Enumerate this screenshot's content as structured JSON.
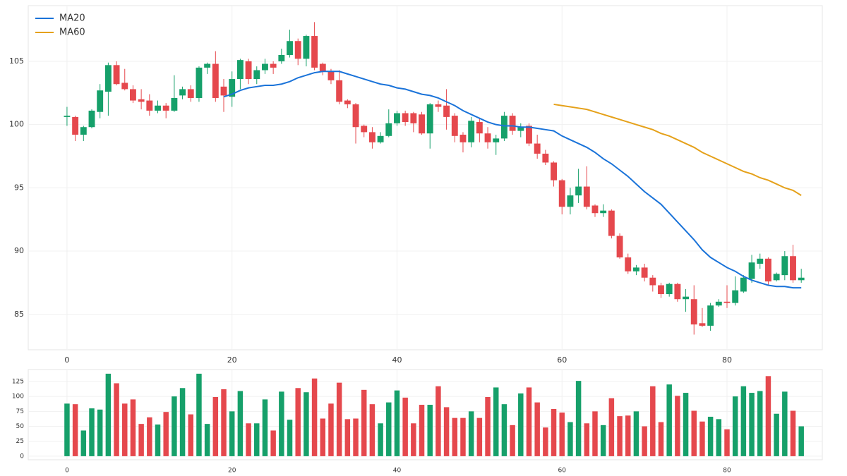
{
  "chart_data": [
    {
      "type": "candlestick",
      "x": [
        0,
        1,
        2,
        3,
        4,
        5,
        6,
        7,
        8,
        9,
        10,
        11,
        12,
        13,
        14,
        15,
        16,
        17,
        18,
        19,
        20,
        21,
        22,
        23,
        24,
        25,
        26,
        27,
        28,
        29,
        30,
        31,
        32,
        33,
        34,
        35,
        36,
        37,
        38,
        39,
        40,
        41,
        42,
        43,
        44,
        45,
        46,
        47,
        48,
        49,
        50,
        51,
        52,
        53,
        54,
        55,
        56,
        57,
        58,
        59,
        60,
        61,
        62,
        63,
        64,
        65,
        66,
        67,
        68,
        69,
        70,
        71,
        72,
        73,
        74,
        75,
        76,
        77,
        78,
        79,
        80,
        81,
        82,
        83,
        84,
        85,
        86,
        87,
        88,
        89
      ],
      "open": [
        100.6,
        100.6,
        99.2,
        99.8,
        101.0,
        102.6,
        104.7,
        103.3,
        102.8,
        102.0,
        101.9,
        101.1,
        101.5,
        101.1,
        102.3,
        102.8,
        102.1,
        104.5,
        104.8,
        103.0,
        102.2,
        103.6,
        105.0,
        103.6,
        104.3,
        104.8,
        105.0,
        105.5,
        106.6,
        105.2,
        107.0,
        104.8,
        104.2,
        103.5,
        101.9,
        101.6,
        99.9,
        99.4,
        98.6,
        99.1,
        100.1,
        100.9,
        100.9,
        100.8,
        99.3,
        101.6,
        101.5,
        100.7,
        99.2,
        98.6,
        100.2,
        99.3,
        98.6,
        98.9,
        100.7,
        99.5,
        99.9,
        98.5,
        97.7,
        97.0,
        95.6,
        93.5,
        94.4,
        95.1,
        93.6,
        93.0,
        93.2,
        91.2,
        89.5,
        88.4,
        88.7,
        87.9,
        87.3,
        86.6,
        87.4,
        86.2,
        86.2,
        84.3,
        84.1,
        85.7,
        86.0,
        85.9,
        86.8,
        87.8,
        89.0,
        89.4,
        87.7,
        88.1,
        89.6,
        87.7
      ],
      "high": [
        101.4,
        100.7,
        99.9,
        101.2,
        103.2,
        104.9,
        105.0,
        104.4,
        103.1,
        102.8,
        102.4,
        101.9,
        101.7,
        103.9,
        103.0,
        103.1,
        104.6,
        104.9,
        105.8,
        103.6,
        104.2,
        105.2,
        105.2,
        104.6,
        105.2,
        105.0,
        106.0,
        107.5,
        106.8,
        107.1,
        108.1,
        104.9,
        104.4,
        104.3,
        102.0,
        101.7,
        100.0,
        99.8,
        99.4,
        101.2,
        101.1,
        101.1,
        101.0,
        101.0,
        101.7,
        101.9,
        102.8,
        100.9,
        99.4,
        100.6,
        100.5,
        99.8,
        99.2,
        101.0,
        100.9,
        100.1,
        100.1,
        99.2,
        98.0,
        97.1,
        95.7,
        95.0,
        96.5,
        96.7,
        93.7,
        93.7,
        93.3,
        91.4,
        89.8,
        88.9,
        89.0,
        88.1,
        87.5,
        87.5,
        87.5,
        87.0,
        87.3,
        85.5,
        85.9,
        86.2,
        87.3,
        88.0,
        88.1,
        89.7,
        89.8,
        89.5,
        88.3,
        90.0,
        90.5,
        88.6
      ],
      "low": [
        99.9,
        98.7,
        98.7,
        99.7,
        100.5,
        100.7,
        103.1,
        102.7,
        101.7,
        101.2,
        100.7,
        100.9,
        100.5,
        101.0,
        102.0,
        101.8,
        101.8,
        104.0,
        101.8,
        101.0,
        101.4,
        102.8,
        103.2,
        103.2,
        104.0,
        104.0,
        104.8,
        105.3,
        104.7,
        104.6,
        104.3,
        103.9,
        103.2,
        101.6,
        101.3,
        98.5,
        99.0,
        98.1,
        98.5,
        99.0,
        99.9,
        99.9,
        99.4,
        99.2,
        98.1,
        101.0,
        99.6,
        98.6,
        97.8,
        98.2,
        98.6,
        98.1,
        97.6,
        98.7,
        99.2,
        99.0,
        98.3,
        97.3,
        96.8,
        95.1,
        92.9,
        92.9,
        93.8,
        93.3,
        92.7,
        92.7,
        91.0,
        89.4,
        88.2,
        88.1,
        87.6,
        86.8,
        86.3,
        86.4,
        86.0,
        85.2,
        83.4,
        84.0,
        83.7,
        85.6,
        85.5,
        85.7,
        86.7,
        87.5,
        88.6,
        87.3,
        87.6,
        87.7,
        87.5,
        87.5
      ],
      "close": [
        100.7,
        99.2,
        99.8,
        101.1,
        102.7,
        104.7,
        103.2,
        102.8,
        101.9,
        101.8,
        101.1,
        101.5,
        101.1,
        102.1,
        102.8,
        102.1,
        104.5,
        104.8,
        102.1,
        102.3,
        103.6,
        105.1,
        103.6,
        104.3,
        104.8,
        104.5,
        105.5,
        106.6,
        105.2,
        107.0,
        104.5,
        104.2,
        103.5,
        101.8,
        101.6,
        99.8,
        99.4,
        98.6,
        99.1,
        100.1,
        100.9,
        100.2,
        100.1,
        99.3,
        101.6,
        101.4,
        100.6,
        99.1,
        98.6,
        100.3,
        99.3,
        98.6,
        98.9,
        100.7,
        99.5,
        99.8,
        98.5,
        97.7,
        97.0,
        95.6,
        93.5,
        94.4,
        95.1,
        93.5,
        93.0,
        93.2,
        91.2,
        89.5,
        88.4,
        88.7,
        87.9,
        87.3,
        86.6,
        87.4,
        86.2,
        86.4,
        84.2,
        84.1,
        85.7,
        86.0,
        85.9,
        86.9,
        87.9,
        89.1,
        89.4,
        87.6,
        88.2,
        89.6,
        87.7,
        87.9
      ],
      "up_color": "#16a06a",
      "down_color": "#e5484d",
      "series": [
        {
          "name": "MA20",
          "color": "#1a73d9",
          "values": [
            null,
            null,
            null,
            null,
            null,
            null,
            null,
            null,
            null,
            null,
            null,
            null,
            null,
            null,
            null,
            null,
            null,
            null,
            null,
            102.2,
            102.4,
            102.7,
            102.9,
            103.0,
            103.1,
            103.1,
            103.2,
            103.4,
            103.7,
            103.9,
            104.1,
            104.2,
            104.2,
            104.2,
            104.0,
            103.8,
            103.6,
            103.4,
            103.2,
            103.1,
            102.9,
            102.8,
            102.6,
            102.4,
            102.3,
            102.1,
            101.8,
            101.5,
            101.1,
            100.8,
            100.5,
            100.2,
            100.0,
            99.9,
            99.9,
            99.8,
            99.8,
            99.7,
            99.6,
            99.5,
            99.1,
            98.8,
            98.5,
            98.2,
            97.8,
            97.3,
            96.9,
            96.4,
            95.9,
            95.3,
            94.7,
            94.2,
            93.7,
            93.0,
            92.3,
            91.6,
            90.9,
            90.1,
            89.5,
            89.1,
            88.7,
            88.4,
            88.0,
            87.7,
            87.5,
            87.3,
            87.2,
            87.2,
            87.1,
            87.1
          ]
        },
        {
          "name": "MA60",
          "color": "#e5a11a",
          "values": [
            null,
            null,
            null,
            null,
            null,
            null,
            null,
            null,
            null,
            null,
            null,
            null,
            null,
            null,
            null,
            null,
            null,
            null,
            null,
            null,
            null,
            null,
            null,
            null,
            null,
            null,
            null,
            null,
            null,
            null,
            null,
            null,
            null,
            null,
            null,
            null,
            null,
            null,
            null,
            null,
            null,
            null,
            null,
            null,
            null,
            null,
            null,
            null,
            null,
            null,
            null,
            null,
            null,
            null,
            null,
            null,
            null,
            null,
            null,
            101.6,
            101.5,
            101.4,
            101.3,
            101.2,
            101.0,
            100.8,
            100.6,
            100.4,
            100.2,
            100.0,
            99.8,
            99.6,
            99.3,
            99.1,
            98.8,
            98.5,
            98.2,
            97.8,
            97.5,
            97.2,
            96.9,
            96.6,
            96.3,
            96.1,
            95.8,
            95.6,
            95.3,
            95.0,
            94.8,
            94.4
          ]
        }
      ],
      "xlim": [
        -4.7,
        91.55
      ],
      "ylim": [
        82.2,
        109.4
      ],
      "xticks": [
        0,
        20,
        40,
        60,
        80
      ],
      "yticks": [
        85,
        90,
        95,
        100,
        105
      ],
      "grid": true,
      "legend": "upper left"
    },
    {
      "type": "bar",
      "x": [
        0,
        1,
        2,
        3,
        4,
        5,
        6,
        7,
        8,
        9,
        10,
        11,
        12,
        13,
        14,
        15,
        16,
        17,
        18,
        19,
        20,
        21,
        22,
        23,
        24,
        25,
        26,
        27,
        28,
        29,
        30,
        31,
        32,
        33,
        34,
        35,
        36,
        37,
        38,
        39,
        40,
        41,
        42,
        43,
        44,
        45,
        46,
        47,
        48,
        49,
        50,
        51,
        52,
        53,
        54,
        55,
        56,
        57,
        58,
        59,
        60,
        61,
        62,
        63,
        64,
        65,
        66,
        67,
        68,
        69,
        70,
        71,
        72,
        73,
        74,
        75,
        76,
        77,
        78,
        79,
        80,
        81,
        82,
        83,
        84,
        85,
        86,
        87,
        88,
        89
      ],
      "values": [
        88,
        87,
        43,
        80,
        78,
        138,
        122,
        88,
        95,
        54,
        65,
        53,
        74,
        100,
        114,
        70,
        138,
        54,
        99,
        112,
        75,
        109,
        55,
        55,
        95,
        43,
        108,
        61,
        114,
        107,
        130,
        63,
        88,
        123,
        62,
        63,
        111,
        87,
        55,
        90,
        110,
        98,
        55,
        86,
        86,
        117,
        82,
        64,
        64,
        75,
        64,
        99,
        115,
        87,
        52,
        105,
        115,
        90,
        48,
        79,
        73,
        57,
        126,
        55,
        75,
        52,
        97,
        67,
        68,
        75,
        50,
        117,
        57,
        120,
        101,
        106,
        76,
        58,
        66,
        62,
        45,
        100,
        117,
        106,
        109,
        134,
        71,
        108,
        76,
        50
      ],
      "xlim": [
        -4.7,
        91.55
      ],
      "ylim": [
        -6,
        145
      ],
      "xticks": [
        0,
        20,
        40,
        60,
        80
      ],
      "yticks": [
        0,
        25,
        50,
        75,
        100,
        125
      ],
      "grid": true
    }
  ]
}
